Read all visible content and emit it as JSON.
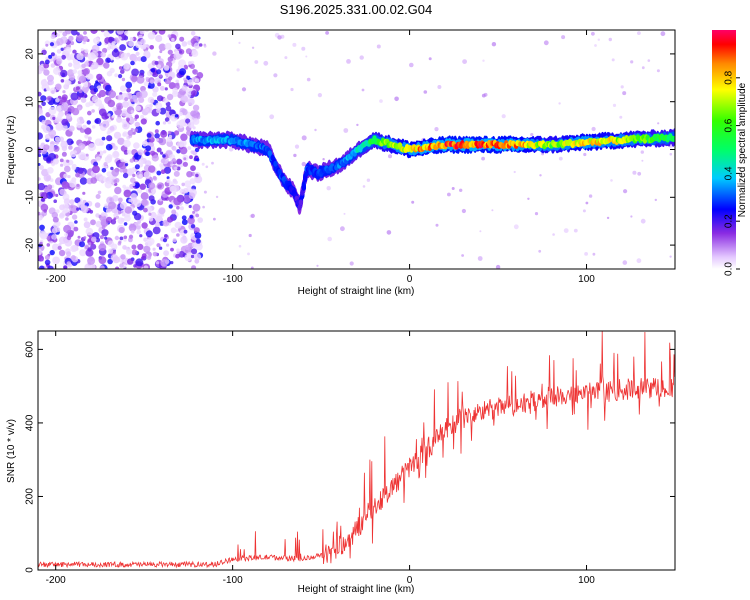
{
  "title": "S196.2025.331.00.02.G04",
  "chart_data": [
    {
      "type": "heatmap",
      "xlabel": "Height of straight line (km)",
      "ylabel": "Frequency (Hz)",
      "xlim": [
        -210,
        150
      ],
      "ylim": [
        -25,
        25
      ],
      "xticks": [
        -200,
        -100,
        0,
        100
      ],
      "yticks": [
        -20,
        -10,
        0,
        10,
        20
      ],
      "colorbar": {
        "label": "Normalized spectral amplitude",
        "range": [
          0,
          1
        ],
        "ticks": [
          0.0,
          0.2,
          0.4,
          0.6,
          0.8
        ]
      },
      "ridge": {
        "description_points_x": [
          -123,
          -110,
          -100,
          -90,
          -80,
          -75,
          -70,
          -65,
          -62,
          -58,
          -52,
          -45,
          -38,
          -32,
          -25,
          -20,
          -10,
          0,
          10,
          20,
          40,
          60,
          80,
          100,
          120,
          150
        ],
        "description_points_y": [
          2,
          2,
          2,
          1,
          0,
          -4,
          -7,
          -9,
          -12,
          -4,
          -5,
          -4,
          -3,
          -1,
          1,
          2,
          1,
          0,
          0.5,
          1,
          1,
          1,
          1,
          1.5,
          2,
          2.5
        ],
        "amplitude": [
          0.35,
          0.4,
          0.38,
          0.35,
          0.32,
          0.3,
          0.3,
          0.25,
          0.2,
          0.3,
          0.3,
          0.32,
          0.35,
          0.4,
          0.5,
          0.6,
          0.75,
          0.85,
          0.9,
          0.95,
          0.95,
          0.9,
          0.7,
          0.85,
          0.75,
          0.55
        ]
      },
      "noise_region_x": [
        -210,
        -118
      ]
    },
    {
      "type": "line",
      "xlabel": "Height of straight line (km)",
      "ylabel": "SNR (10 * v/v)",
      "xlim": [
        -210,
        150
      ],
      "ylim": [
        0,
        650
      ],
      "xticks": [
        -200,
        -100,
        0,
        100
      ],
      "yticks": [
        0,
        200,
        400,
        600
      ],
      "series": [
        {
          "name": "SNR",
          "color": "#ee3333",
          "trend_x": [
            -210,
            -110,
            -100,
            -80,
            -60,
            -45,
            -35,
            -25,
            -15,
            -5,
            0,
            10,
            20,
            30,
            40,
            60,
            80,
            100,
            120,
            150
          ],
          "trend_y": [
            15,
            15,
            30,
            35,
            30,
            45,
            80,
            140,
            200,
            250,
            280,
            330,
            380,
            410,
            430,
            450,
            470,
            480,
            490,
            500
          ]
        }
      ]
    }
  ]
}
